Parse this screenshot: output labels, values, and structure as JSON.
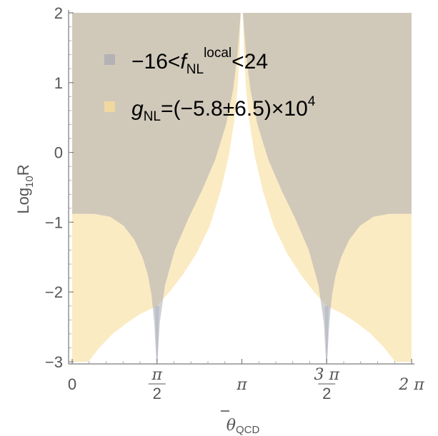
{
  "chart_data": {
    "type": "area",
    "xlabel": "θ̄QCD",
    "xlabel_main": "θ",
    "xlabel_sub": "QCD",
    "ylabel": "Log10R",
    "ylabel_main": "Log",
    "ylabel_sub": "10",
    "ylabel_end": "R",
    "xlim": [
      0,
      6.2832
    ],
    "ylim": [
      -3,
      2
    ],
    "x_ticks": [
      {
        "value": 0,
        "kind": "plain",
        "text": "0"
      },
      {
        "value": 1.5708,
        "kind": "frac",
        "num": "π",
        "den": "2"
      },
      {
        "value": 3.1416,
        "kind": "plain",
        "text": "π"
      },
      {
        "value": 4.7124,
        "kind": "frac",
        "num": "3 π",
        "den": "2"
      },
      {
        "value": 6.2832,
        "kind": "plain",
        "text": "2 π"
      }
    ],
    "y_ticks": [
      {
        "value": 2,
        "text": "2"
      },
      {
        "value": 1,
        "text": "1"
      },
      {
        "value": 0,
        "text": "0"
      },
      {
        "value": -1,
        "text": "−1"
      },
      {
        "value": -2,
        "text": "−2"
      },
      {
        "value": -3,
        "text": "−3"
      }
    ],
    "legend_position": "top-left",
    "series": [
      {
        "name": "−16<fNLlocal<24",
        "legend_parts": {
          "pre": "−16<",
          "italic": "f",
          "sub": "NL",
          "sup": "local",
          "post": "<24"
        },
        "color": "#b4b2b4",
        "fill_opacity": 0.6,
        "lower_boundary": [
          [
            0.0,
            -0.88
          ],
          [
            0.4,
            -0.88
          ],
          [
            0.7,
            -0.92
          ],
          [
            0.95,
            -1.05
          ],
          [
            1.15,
            -1.25
          ],
          [
            1.3,
            -1.5
          ],
          [
            1.4,
            -1.75
          ],
          [
            1.47,
            -2.05
          ],
          [
            1.52,
            -2.45
          ],
          [
            1.56,
            -3.0
          ],
          [
            1.58,
            -3.0
          ],
          [
            1.62,
            -2.45
          ],
          [
            1.72,
            -1.9
          ],
          [
            1.9,
            -1.4
          ],
          [
            2.15,
            -0.95
          ],
          [
            2.4,
            -0.55
          ],
          [
            2.65,
            -0.1
          ],
          [
            2.85,
            0.4
          ],
          [
            2.98,
            0.9
          ],
          [
            3.06,
            1.4
          ],
          [
            3.1,
            1.8
          ],
          [
            3.12,
            2.0
          ],
          [
            3.16,
            2.0
          ],
          [
            3.18,
            1.8
          ],
          [
            3.22,
            1.4
          ],
          [
            3.3,
            0.9
          ],
          [
            3.43,
            0.4
          ],
          [
            3.63,
            -0.1
          ],
          [
            3.88,
            -0.55
          ],
          [
            4.13,
            -0.95
          ],
          [
            4.38,
            -1.4
          ],
          [
            4.56,
            -1.9
          ],
          [
            4.66,
            -2.45
          ],
          [
            4.7,
            -3.0
          ],
          [
            4.72,
            -3.0
          ],
          [
            4.76,
            -2.45
          ],
          [
            4.81,
            -2.05
          ],
          [
            4.88,
            -1.75
          ],
          [
            4.98,
            -1.5
          ],
          [
            5.13,
            -1.25
          ],
          [
            5.33,
            -1.05
          ],
          [
            5.58,
            -0.92
          ],
          [
            5.88,
            -0.88
          ],
          [
            6.2832,
            -0.88
          ]
        ]
      },
      {
        "name": "gNL=(−5.8±6.5)×10^4",
        "legend_parts": {
          "italic": "g",
          "sub": "NL",
          "mid": "=(−5.8±6.5)×10",
          "sup": "4"
        },
        "color": "#fae6b4",
        "fill_opacity": 0.8,
        "lower_boundary": [
          [
            0.0,
            -3.0
          ],
          [
            0.3,
            -3.0
          ],
          [
            0.5,
            -2.8
          ],
          [
            0.75,
            -2.6
          ],
          [
            1.0,
            -2.45
          ],
          [
            1.25,
            -2.32
          ],
          [
            1.5708,
            -2.2
          ],
          [
            1.8,
            -2.0
          ],
          [
            2.05,
            -1.75
          ],
          [
            2.3,
            -1.45
          ],
          [
            2.55,
            -1.05
          ],
          [
            2.75,
            -0.55
          ],
          [
            2.9,
            -0.05
          ],
          [
            3.0,
            0.45
          ],
          [
            3.06,
            0.9
          ],
          [
            3.1,
            1.4
          ],
          [
            3.12,
            2.0
          ],
          [
            3.16,
            2.0
          ],
          [
            3.18,
            1.4
          ],
          [
            3.22,
            0.9
          ],
          [
            3.28,
            0.45
          ],
          [
            3.38,
            -0.05
          ],
          [
            3.53,
            -0.55
          ],
          [
            3.73,
            -1.05
          ],
          [
            3.98,
            -1.45
          ],
          [
            4.23,
            -1.75
          ],
          [
            4.48,
            -2.0
          ],
          [
            4.7124,
            -2.2
          ],
          [
            5.03,
            -2.32
          ],
          [
            5.28,
            -2.45
          ],
          [
            5.53,
            -2.6
          ],
          [
            5.78,
            -2.8
          ],
          [
            5.98,
            -3.0
          ],
          [
            6.2832,
            -3.0
          ]
        ]
      }
    ],
    "cusp_spikes": [
      {
        "x": 1.5708,
        "color": "#c8d4ee"
      },
      {
        "x": 4.7124,
        "color": "#c8d4ee"
      }
    ]
  }
}
